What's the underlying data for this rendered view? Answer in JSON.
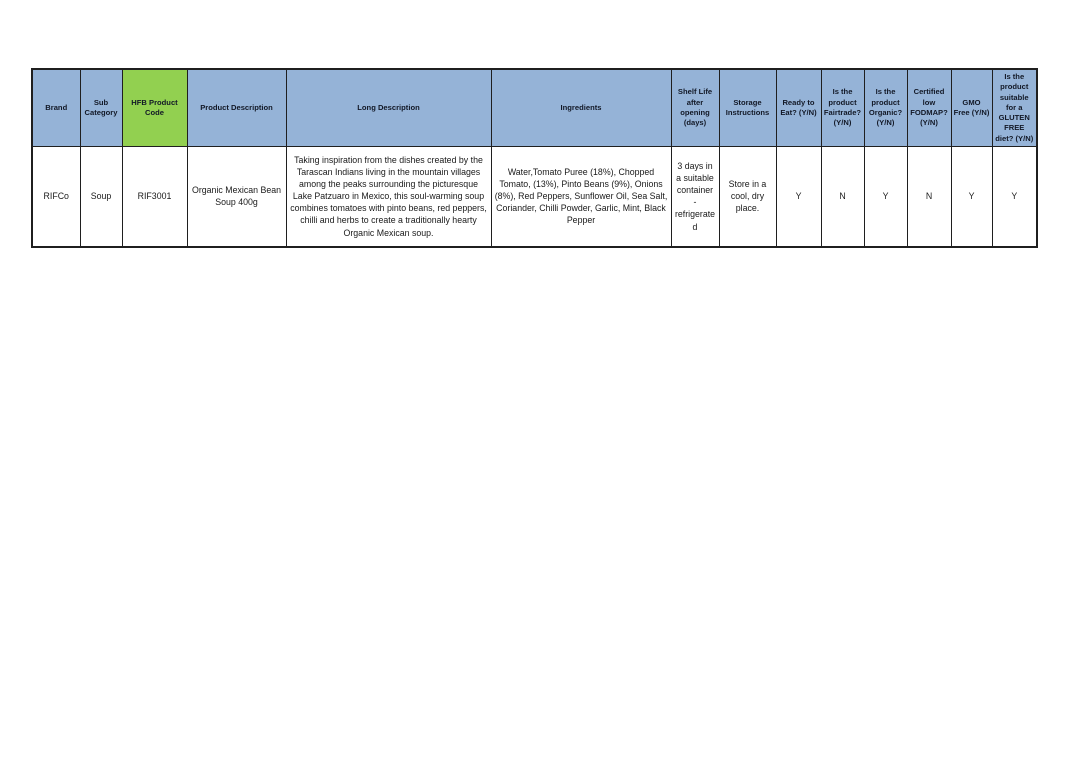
{
  "colors": {
    "header_blue": "#95B3D7",
    "code_green": "#92D050",
    "grid_border": "#1f1f1f"
  },
  "table": {
    "headers": [
      "Brand",
      "Sub Category",
      "HFB Product Code",
      "Product Description",
      "Long Description",
      "Ingredients",
      "Shelf Life after opening (days)",
      "Storage Instructions",
      "Ready to Eat? (Y/N)",
      "Is the product Fairtrade? (Y/N)",
      "Is the product Organic? (Y/N)",
      "Certified low FODMAP? (Y/N)",
      "GMO Free (Y/N)",
      "Is the product suitable for a GLUTEN FREE diet? (Y/N)"
    ],
    "row": {
      "brand": "RIFCo",
      "sub_category": "Soup",
      "hfb_product_code": "RIF3001",
      "product_description": "Organic Mexican Bean Soup 400g",
      "long_description": "Taking inspiration from the dishes created by the Tarascan Indians living in the mountain villages among the peaks surrounding the picturesque Lake Patzuaro in Mexico, this soul-warming soup combines tomatoes with pinto beans, red peppers, chilli and herbs to create a traditionally hearty Organic Mexican soup.",
      "ingredients": "Water,Tomato Puree (18%), Chopped Tomato, (13%), Pinto Beans (9%), Onions (8%), Red Peppers, Sunflower Oil, Sea Salt, Coriander, Chilli Powder, Garlic, Mint, Black Pepper",
      "shelf_life_after_opening": "3 days in a suitable container - refrigerated",
      "storage_instructions": "Store in a cool, dry place.",
      "ready_to_eat": "Y",
      "fairtrade": "N",
      "organic": "Y",
      "low_fodmap": "N",
      "gmo_free": "Y",
      "gluten_free": "Y"
    }
  }
}
